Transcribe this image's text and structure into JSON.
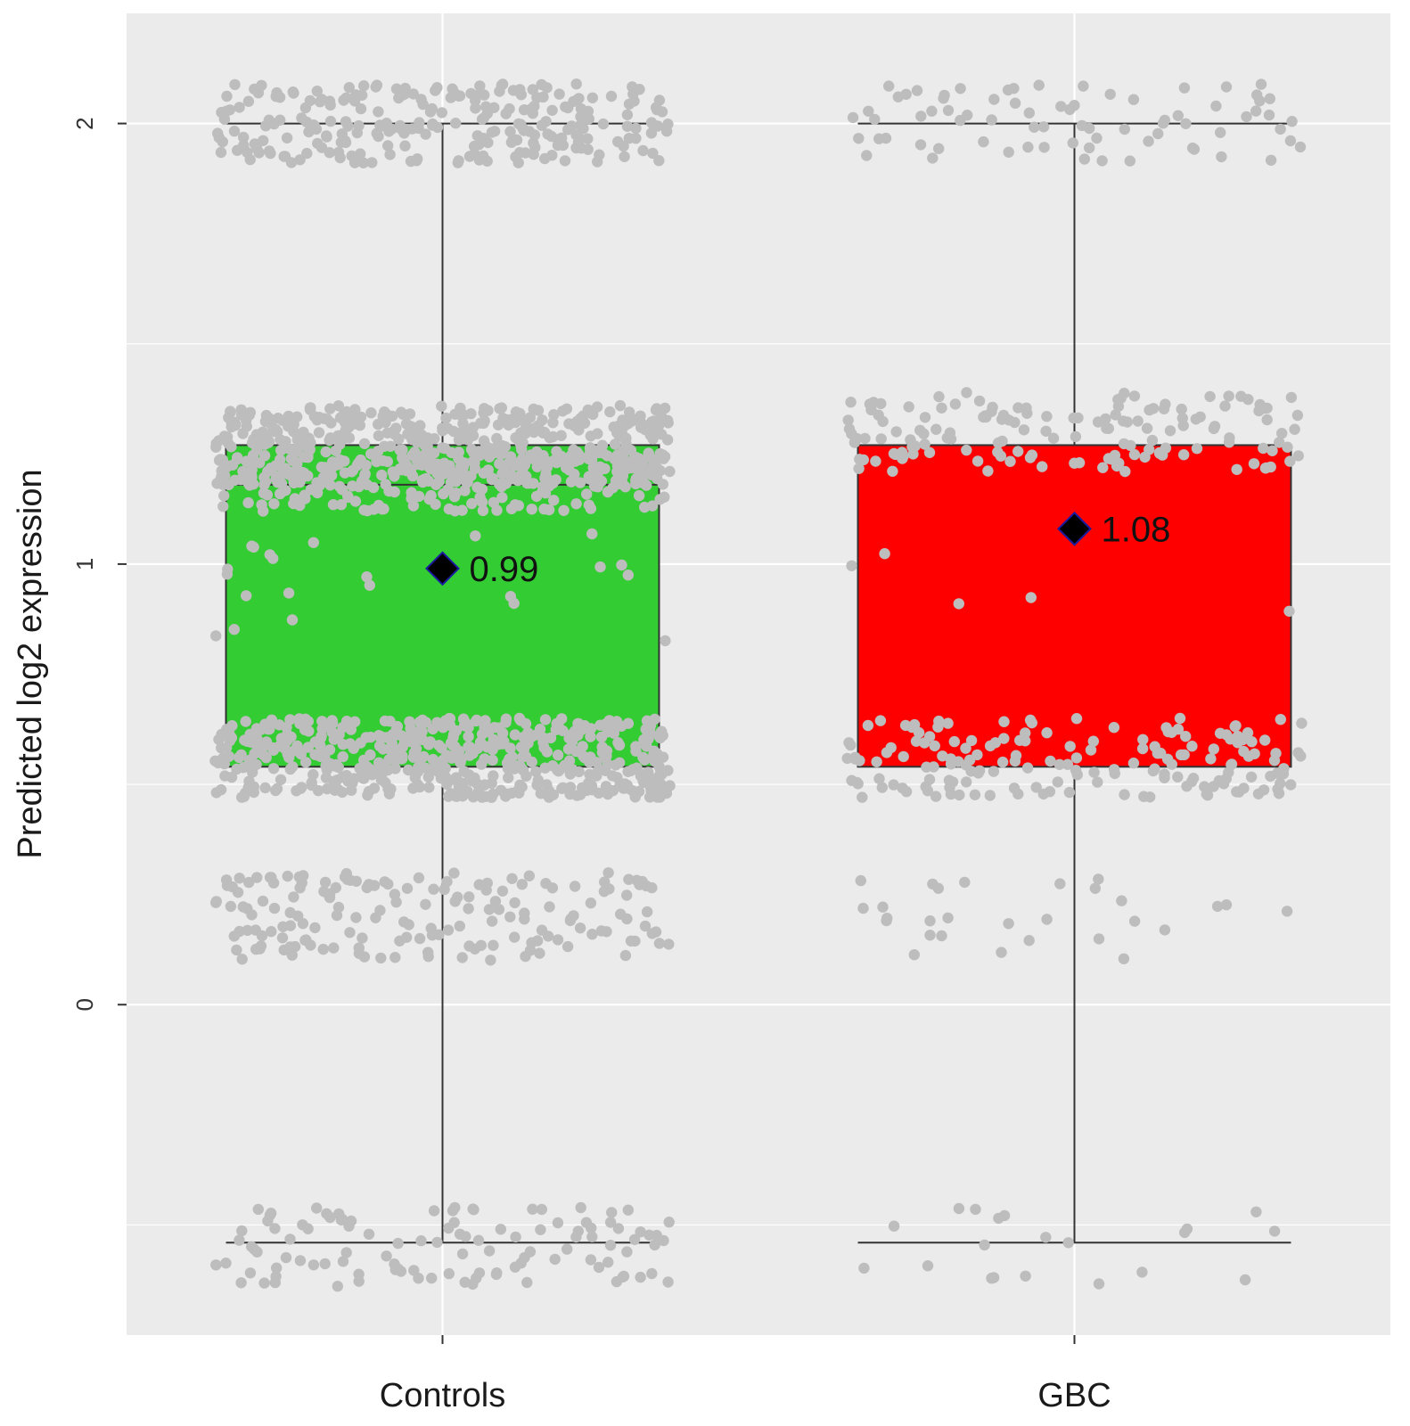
{
  "chart_data": {
    "type": "boxplot",
    "title": "",
    "xlabel": "",
    "ylabel": "Predicted log2 expression",
    "ylim": [
      -0.75,
      2.25
    ],
    "yticks": [
      0,
      1,
      2
    ],
    "grid": true,
    "legend": "none",
    "colors": {
      "panel": "#ebebeb",
      "grid": "#ffffff",
      "points": "#bdbdbd",
      "whisker": "#333333",
      "mean_marker": "#000000",
      "mean_marker_edge": "#1a1aa0"
    },
    "categories": [
      "Controls",
      "GBC"
    ],
    "groups": [
      {
        "name": "Controls",
        "fill": "#33cc33",
        "whisker_low": -0.54,
        "q1": 0.54,
        "median": 1.18,
        "q3": 1.27,
        "whisker_high": 2.0,
        "mean": 0.99,
        "mean_label": "0.99",
        "point_bands": [
          {
            "center": 2.0,
            "spread": 0.09,
            "count": 260
          },
          {
            "center": 1.27,
            "spread": 0.09,
            "count": 520
          },
          {
            "center": 1.18,
            "spread": 0.06,
            "count": 180
          },
          {
            "center": 0.94,
            "spread": 0.14,
            "count": 22
          },
          {
            "center": 0.56,
            "spread": 0.09,
            "count": 520
          },
          {
            "center": 0.2,
            "spread": 0.1,
            "count": 170
          },
          {
            "center": -0.55,
            "spread": 0.09,
            "count": 110
          }
        ]
      },
      {
        "name": "GBC",
        "fill": "#ff0000",
        "whisker_low": -0.54,
        "q1": 0.54,
        "median": 1.27,
        "q3": 1.27,
        "whisker_high": 2.0,
        "mean": 1.08,
        "mean_label": "1.08",
        "point_bands": [
          {
            "center": 2.0,
            "spread": 0.09,
            "count": 75
          },
          {
            "center": 1.3,
            "spread": 0.09,
            "count": 150
          },
          {
            "center": 0.95,
            "spread": 0.15,
            "count": 5
          },
          {
            "center": 0.56,
            "spread": 0.09,
            "count": 170
          },
          {
            "center": 0.2,
            "spread": 0.1,
            "count": 28
          },
          {
            "center": -0.55,
            "spread": 0.09,
            "count": 20
          }
        ]
      }
    ]
  }
}
